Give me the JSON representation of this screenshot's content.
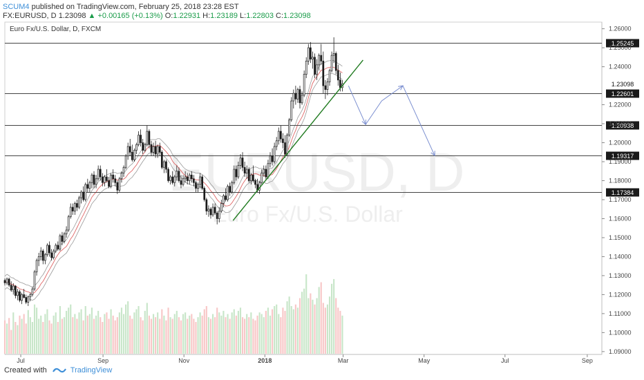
{
  "header": {
    "author": "SCUM4",
    "published_text": "published on TradingView.com, February 25, 2018 23:28 EST"
  },
  "symbol_line": {
    "symbol": "FX:EURUSD, D",
    "last": "1.23098",
    "arrow": "▲",
    "change": "+0.00165 (+0.13%)",
    "o_label": "O:",
    "o_value": "1.22931",
    "h_label": "H:",
    "h_value": "1.23189",
    "l_label": "L:",
    "l_value": "1.22803",
    "c_label": "C:",
    "c_value": "1.23098"
  },
  "footer": {
    "created_with": "Created with",
    "brand": "TradingView"
  },
  "chart_data": {
    "type": "candlestick",
    "title": "Euro Fx/U.S. Dollar, D, FXCM",
    "watermark_symbol": "EURUSD, D",
    "watermark_name": "Euro Fx/U.S. Dollar",
    "ylim": [
      1.0885,
      1.2635
    ],
    "y_ticks": [
      "1.26000",
      "1.25000",
      "1.24000",
      "1.22000",
      "1.21000",
      "1.20000",
      "1.19000",
      "1.18000",
      "1.17000",
      "1.16000",
      "1.15000",
      "1.14000",
      "1.13000",
      "1.12000",
      "1.11000",
      "1.10000",
      "1.09000"
    ],
    "x_labels": [
      "Jul",
      "Sep",
      "Nov",
      "2018",
      "Mar",
      "May",
      "Jul",
      "Sep"
    ],
    "x_label_positions_days": [
      12,
      74,
      135,
      196,
      255,
      316,
      377,
      439
    ],
    "total_days_span": 450,
    "colors": {
      "bull": "#ffffff",
      "bear": "#1a1a1a",
      "volume_up": "#c8e6c9",
      "volume_down": "#f8c7c7",
      "level_line": "#444444",
      "trend_line": "#1f7a1f",
      "projection": "#7b8fd0",
      "ma_red": "#e06666",
      "ma_grey": "#999999"
    },
    "horizontal_levels": [
      {
        "value": 1.25245,
        "label": "1.25245",
        "style": "dark"
      },
      {
        "value": 1.22601,
        "label": "1.22601",
        "style": "dark"
      },
      {
        "value": 1.20938,
        "label": "1.20938",
        "style": "dark"
      },
      {
        "value": 1.19317,
        "label": "1.19317",
        "style": "dark"
      },
      {
        "value": 1.17384,
        "label": "1.17384",
        "style": "dark"
      }
    ],
    "last_price_label": {
      "value": 1.23098,
      "label": "1.23098"
    },
    "trend_line": {
      "x": [
        172,
        270
      ],
      "y": [
        1.159,
        1.2435
      ]
    },
    "projection_path": {
      "x": [
        259,
        272,
        284,
        300,
        324
      ],
      "y": [
        1.23,
        1.2096,
        1.222,
        1.23,
        1.1932
      ]
    },
    "candles": [
      [
        1.1275,
        1.1285,
        1.1248,
        1.1262
      ],
      [
        1.1262,
        1.129,
        1.125,
        1.1282
      ],
      [
        1.1282,
        1.129,
        1.124,
        1.125
      ],
      [
        1.125,
        1.127,
        1.1215,
        1.1225
      ],
      [
        1.1225,
        1.126,
        1.12,
        1.1245
      ],
      [
        1.1245,
        1.125,
        1.118,
        1.1195
      ],
      [
        1.1195,
        1.123,
        1.117,
        1.1215
      ],
      [
        1.1215,
        1.1225,
        1.116,
        1.117
      ],
      [
        1.117,
        1.121,
        1.115,
        1.12
      ],
      [
        1.12,
        1.123,
        1.118,
        1.1185
      ],
      [
        1.1185,
        1.12,
        1.115,
        1.116
      ],
      [
        1.116,
        1.1195,
        1.114,
        1.1188
      ],
      [
        1.1188,
        1.121,
        1.1165,
        1.12
      ],
      [
        1.12,
        1.124,
        1.119,
        1.123
      ],
      [
        1.123,
        1.133,
        1.122,
        1.132
      ],
      [
        1.132,
        1.139,
        1.13,
        1.138
      ],
      [
        1.138,
        1.142,
        1.135,
        1.14
      ],
      [
        1.14,
        1.145,
        1.138,
        1.143
      ],
      [
        1.143,
        1.144,
        1.136,
        1.138
      ],
      [
        1.138,
        1.142,
        1.136,
        1.141
      ],
      [
        1.141,
        1.147,
        1.14,
        1.146
      ],
      [
        1.146,
        1.148,
        1.14,
        1.142
      ],
      [
        1.142,
        1.144,
        1.138,
        1.1395
      ],
      [
        1.1395,
        1.144,
        1.1385,
        1.143
      ],
      [
        1.143,
        1.147,
        1.142,
        1.146
      ],
      [
        1.146,
        1.148,
        1.143,
        1.144
      ],
      [
        1.144,
        1.152,
        1.143,
        1.151
      ],
      [
        1.151,
        1.153,
        1.146,
        1.148
      ],
      [
        1.148,
        1.153,
        1.147,
        1.152
      ],
      [
        1.152,
        1.156,
        1.15,
        1.154
      ],
      [
        1.154,
        1.162,
        1.153,
        1.161
      ],
      [
        1.161,
        1.168,
        1.16,
        1.166
      ],
      [
        1.166,
        1.168,
        1.162,
        1.164
      ],
      [
        1.164,
        1.169,
        1.162,
        1.168
      ],
      [
        1.168,
        1.17,
        1.164,
        1.166
      ],
      [
        1.166,
        1.172,
        1.165,
        1.171
      ],
      [
        1.171,
        1.175,
        1.168,
        1.174
      ],
      [
        1.174,
        1.177,
        1.169,
        1.17
      ],
      [
        1.17,
        1.179,
        1.169,
        1.178
      ],
      [
        1.178,
        1.181,
        1.174,
        1.176
      ],
      [
        1.176,
        1.18,
        1.174,
        1.179
      ],
      [
        1.179,
        1.184,
        1.176,
        1.183
      ],
      [
        1.183,
        1.185,
        1.176,
        1.178
      ],
      [
        1.178,
        1.183,
        1.176,
        1.181
      ],
      [
        1.181,
        1.188,
        1.18,
        1.186
      ],
      [
        1.186,
        1.188,
        1.18,
        1.182
      ],
      [
        1.182,
        1.184,
        1.177,
        1.179
      ],
      [
        1.179,
        1.183,
        1.177,
        1.182
      ],
      [
        1.182,
        1.186,
        1.179,
        1.18
      ],
      [
        1.18,
        1.182,
        1.176,
        1.177
      ],
      [
        1.177,
        1.184,
        1.176,
        1.183
      ],
      [
        1.183,
        1.186,
        1.179,
        1.181
      ],
      [
        1.181,
        1.183,
        1.177,
        1.179
      ],
      [
        1.179,
        1.18,
        1.173,
        1.175
      ],
      [
        1.175,
        1.182,
        1.174,
        1.181
      ],
      [
        1.181,
        1.185,
        1.179,
        1.184
      ],
      [
        1.184,
        1.188,
        1.182,
        1.187
      ],
      [
        1.187,
        1.194,
        1.186,
        1.193
      ],
      [
        1.193,
        1.2,
        1.191,
        1.198
      ],
      [
        1.198,
        1.202,
        1.193,
        1.195
      ],
      [
        1.195,
        1.199,
        1.19,
        1.191
      ],
      [
        1.191,
        1.197,
        1.19,
        1.196
      ],
      [
        1.196,
        1.2,
        1.194,
        1.199
      ],
      [
        1.199,
        1.206,
        1.198,
        1.204
      ],
      [
        1.204,
        1.207,
        1.198,
        1.2
      ],
      [
        1.2,
        1.202,
        1.194,
        1.196
      ],
      [
        1.196,
        1.2,
        1.195,
        1.199
      ],
      [
        1.199,
        1.209,
        1.198,
        1.206
      ],
      [
        1.206,
        1.207,
        1.197,
        1.199
      ],
      [
        1.199,
        1.201,
        1.193,
        1.195
      ],
      [
        1.195,
        1.2,
        1.193,
        1.198
      ],
      [
        1.198,
        1.201,
        1.192,
        1.194
      ],
      [
        1.194,
        1.199,
        1.192,
        1.198
      ],
      [
        1.198,
        1.2,
        1.193,
        1.195
      ],
      [
        1.195,
        1.196,
        1.186,
        1.187
      ],
      [
        1.187,
        1.191,
        1.184,
        1.19
      ],
      [
        1.19,
        1.191,
        1.184,
        1.186
      ],
      [
        1.186,
        1.187,
        1.179,
        1.18
      ],
      [
        1.18,
        1.183,
        1.178,
        1.182
      ],
      [
        1.182,
        1.185,
        1.178,
        1.179
      ],
      [
        1.179,
        1.183,
        1.177,
        1.182
      ],
      [
        1.182,
        1.188,
        1.18,
        1.185
      ],
      [
        1.185,
        1.187,
        1.179,
        1.18
      ],
      [
        1.18,
        1.183,
        1.176,
        1.178
      ],
      [
        1.178,
        1.183,
        1.177,
        1.181
      ],
      [
        1.181,
        1.185,
        1.179,
        1.182
      ],
      [
        1.182,
        1.184,
        1.178,
        1.18
      ],
      [
        1.18,
        1.184,
        1.178,
        1.183
      ],
      [
        1.183,
        1.185,
        1.179,
        1.181
      ],
      [
        1.181,
        1.183,
        1.177,
        1.179
      ],
      [
        1.179,
        1.18,
        1.174,
        1.176
      ],
      [
        1.176,
        1.179,
        1.174,
        1.178
      ],
      [
        1.178,
        1.184,
        1.176,
        1.182
      ],
      [
        1.182,
        1.183,
        1.175,
        1.176
      ],
      [
        1.176,
        1.177,
        1.169,
        1.17
      ],
      [
        1.17,
        1.171,
        1.162,
        1.164
      ],
      [
        1.164,
        1.167,
        1.161,
        1.165
      ],
      [
        1.165,
        1.166,
        1.16,
        1.162
      ],
      [
        1.162,
        1.168,
        1.161,
        1.166
      ],
      [
        1.166,
        1.168,
        1.162,
        1.163
      ],
      [
        1.163,
        1.164,
        1.157,
        1.16
      ],
      [
        1.16,
        1.166,
        1.158,
        1.164
      ],
      [
        1.164,
        1.17,
        1.163,
        1.168
      ],
      [
        1.168,
        1.173,
        1.166,
        1.172
      ],
      [
        1.172,
        1.176,
        1.169,
        1.17
      ],
      [
        1.17,
        1.178,
        1.169,
        1.177
      ],
      [
        1.177,
        1.179,
        1.172,
        1.174
      ],
      [
        1.174,
        1.18,
        1.173,
        1.179
      ],
      [
        1.179,
        1.188,
        1.178,
        1.186
      ],
      [
        1.186,
        1.188,
        1.18,
        1.182
      ],
      [
        1.182,
        1.19,
        1.181,
        1.188
      ],
      [
        1.188,
        1.194,
        1.186,
        1.192
      ],
      [
        1.192,
        1.195,
        1.185,
        1.187
      ],
      [
        1.187,
        1.19,
        1.182,
        1.184
      ],
      [
        1.184,
        1.188,
        1.181,
        1.186
      ],
      [
        1.186,
        1.187,
        1.179,
        1.18
      ],
      [
        1.18,
        1.184,
        1.178,
        1.183
      ],
      [
        1.183,
        1.188,
        1.179,
        1.18
      ],
      [
        1.18,
        1.181,
        1.176,
        1.178
      ],
      [
        1.178,
        1.181,
        1.174,
        1.175
      ],
      [
        1.175,
        1.18,
        1.173,
        1.179
      ],
      [
        1.179,
        1.186,
        1.178,
        1.184
      ],
      [
        1.184,
        1.188,
        1.182,
        1.186
      ],
      [
        1.186,
        1.188,
        1.18,
        1.182
      ],
      [
        1.182,
        1.191,
        1.181,
        1.189
      ],
      [
        1.189,
        1.195,
        1.187,
        1.193
      ],
      [
        1.193,
        1.197,
        1.188,
        1.19
      ],
      [
        1.19,
        1.2,
        1.189,
        1.198
      ],
      [
        1.198,
        1.203,
        1.196,
        1.201
      ],
      [
        1.201,
        1.208,
        1.199,
        1.206
      ],
      [
        1.206,
        1.209,
        1.2,
        1.202
      ],
      [
        1.202,
        1.205,
        1.197,
        1.2
      ],
      [
        1.2,
        1.204,
        1.192,
        1.194
      ],
      [
        1.194,
        1.205,
        1.193,
        1.204
      ],
      [
        1.204,
        1.213,
        1.203,
        1.212
      ],
      [
        1.212,
        1.224,
        1.211,
        1.222
      ],
      [
        1.222,
        1.228,
        1.218,
        1.226
      ],
      [
        1.226,
        1.23,
        1.22,
        1.223
      ],
      [
        1.223,
        1.229,
        1.221,
        1.228
      ],
      [
        1.228,
        1.23,
        1.218,
        1.221
      ],
      [
        1.221,
        1.227,
        1.22,
        1.225
      ],
      [
        1.225,
        1.238,
        1.224,
        1.236
      ],
      [
        1.236,
        1.245,
        1.234,
        1.243
      ],
      [
        1.243,
        1.252,
        1.241,
        1.25
      ],
      [
        1.25,
        1.253,
        1.242,
        1.244
      ],
      [
        1.244,
        1.248,
        1.239,
        1.245
      ],
      [
        1.245,
        1.247,
        1.234,
        1.236
      ],
      [
        1.236,
        1.244,
        1.233,
        1.241
      ],
      [
        1.241,
        1.247,
        1.238,
        1.246
      ],
      [
        1.246,
        1.252,
        1.241,
        1.243
      ],
      [
        1.243,
        1.248,
        1.226,
        1.23
      ],
      [
        1.23,
        1.233,
        1.223,
        1.228
      ],
      [
        1.228,
        1.234,
        1.225,
        1.232
      ],
      [
        1.232,
        1.239,
        1.23,
        1.238
      ],
      [
        1.238,
        1.248,
        1.237,
        1.246
      ],
      [
        1.246,
        1.2555,
        1.242,
        1.247
      ],
      [
        1.247,
        1.248,
        1.236,
        1.238
      ],
      [
        1.238,
        1.241,
        1.23,
        1.233
      ],
      [
        1.233,
        1.237,
        1.227,
        1.229
      ],
      [
        1.229,
        1.233,
        1.227,
        1.231
      ]
    ],
    "volume": [
      42,
      38,
      45,
      30,
      52,
      40,
      36,
      48,
      44,
      50,
      38,
      55,
      46,
      40,
      62,
      58,
      44,
      48,
      40,
      50,
      56,
      42,
      38,
      48,
      52,
      40,
      60,
      44,
      46,
      54,
      58,
      62,
      46,
      50,
      44,
      52,
      56,
      42,
      60,
      48,
      50,
      58,
      44,
      48,
      54,
      46,
      40,
      50,
      52,
      44,
      56,
      48,
      42,
      46,
      52,
      58,
      50,
      62,
      66,
      48,
      44,
      52,
      56,
      60,
      46,
      42,
      54,
      64,
      48,
      44,
      50,
      46,
      52,
      44,
      56,
      48,
      42,
      58,
      46,
      44,
      50,
      54,
      46,
      42,
      50,
      52,
      44,
      48,
      50,
      44,
      40,
      46,
      52,
      48,
      56,
      60,
      46,
      44,
      50,
      46,
      58,
      52,
      48,
      54,
      46,
      50,
      44,
      52,
      56,
      48,
      54,
      58,
      46,
      44,
      50,
      46,
      52,
      44,
      42,
      48,
      52,
      50,
      46,
      54,
      58,
      48,
      56,
      60,
      62,
      50,
      46,
      58,
      54,
      66,
      72,
      60,
      56,
      62,
      58,
      70,
      78,
      82,
      100,
      70,
      76,
      68,
      62,
      70,
      84,
      90,
      64,
      58,
      62,
      72,
      88,
      94,
      70,
      58,
      54,
      48
    ]
  }
}
